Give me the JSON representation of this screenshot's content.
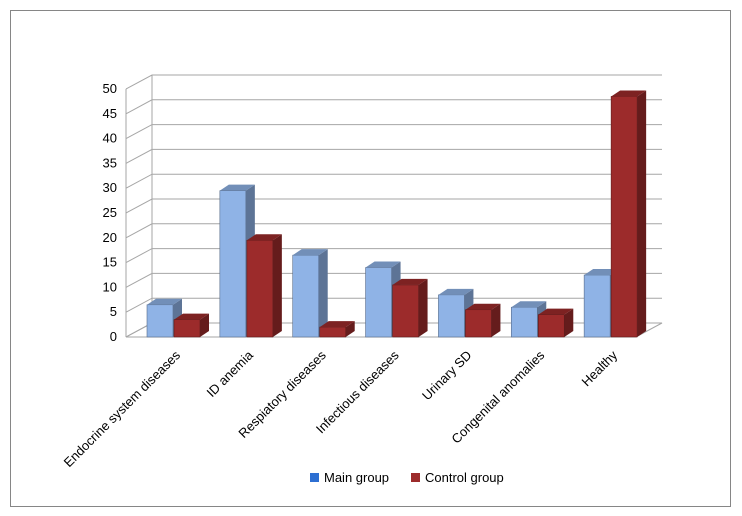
{
  "chart_data": {
    "type": "bar",
    "categories": [
      "Endocrine system diseases",
      "ID anemia",
      "Respiatory diseases",
      "Infectious diseases",
      "Urinary SD",
      "Congenital anomalies",
      "Healthy"
    ],
    "series": [
      {
        "name": "Main group",
        "values": [
          6.5,
          29.5,
          16.5,
          14,
          8.5,
          6,
          12.5
        ],
        "color": "#8fb3e6"
      },
      {
        "name": "Control group",
        "values": [
          3.5,
          19.5,
          2,
          10.5,
          5.5,
          4.5,
          48.5
        ],
        "color": "#9c2b2b"
      }
    ],
    "ylim": [
      0,
      50
    ],
    "yticks": [
      "0",
      "5",
      "10",
      "15",
      "20",
      "25",
      "30",
      "35",
      "40",
      "45",
      "50"
    ],
    "grid": true,
    "legend_position": "bottom",
    "chart_style": "3d-clustered-column"
  }
}
